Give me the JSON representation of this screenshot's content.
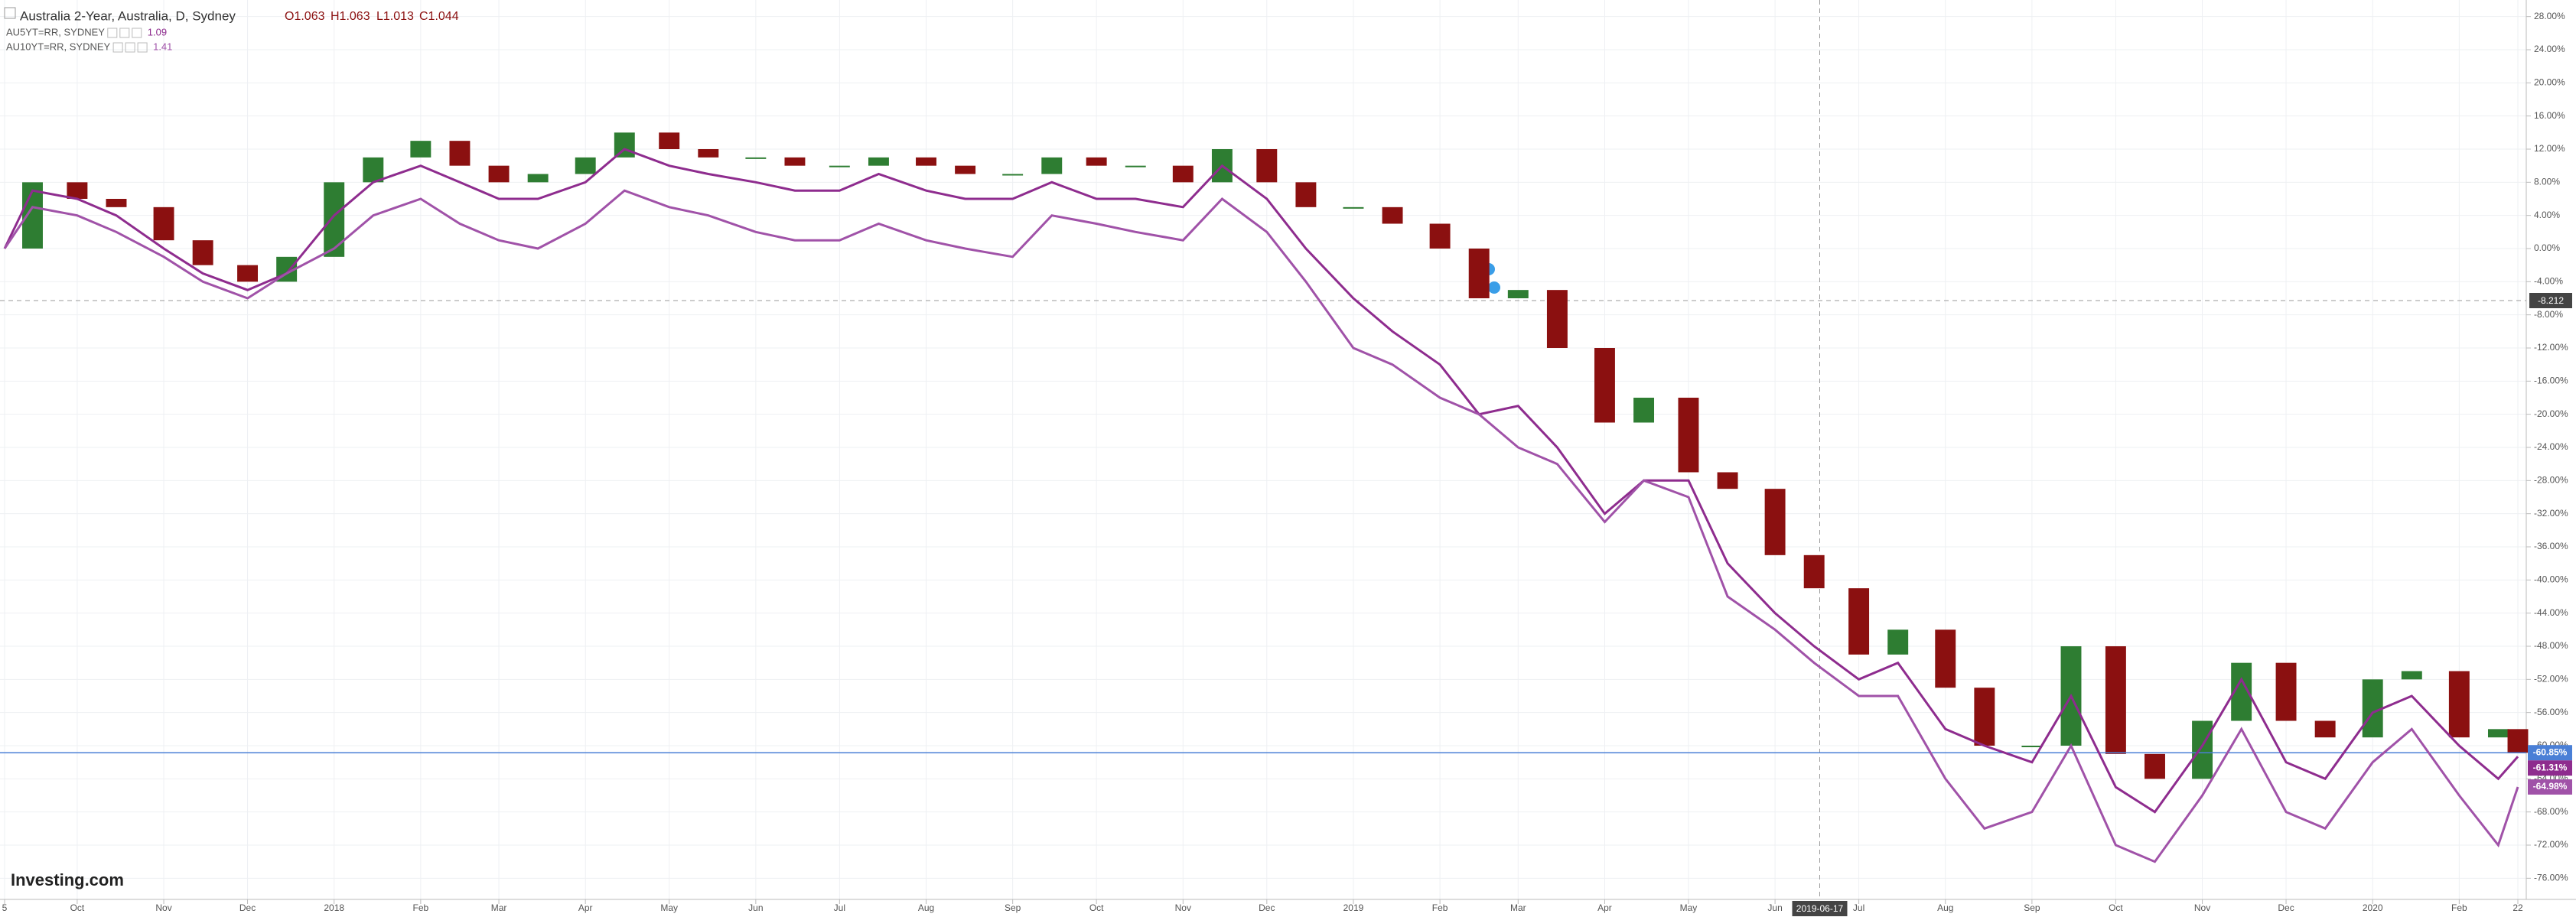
{
  "chart_data": {
    "type": "candlestick-lines",
    "title": "Australia 2-Year, Australia, D, Sydney",
    "ohlc_labels": [
      "O1.063",
      "H1.063",
      "L1.013",
      "C1.044"
    ],
    "x": [
      "2017-09-05",
      "2017-09-15",
      "2017-10-01",
      "2017-10-15",
      "2017-11-01",
      "2017-11-15",
      "2017-12-01",
      "2017-12-15",
      "2018-01-01",
      "2018-01-15",
      "2018-02-01",
      "2018-02-15",
      "2018-03-01",
      "2018-03-15",
      "2018-04-01",
      "2018-04-15",
      "2018-05-01",
      "2018-05-15",
      "2018-06-01",
      "2018-06-15",
      "2018-07-01",
      "2018-07-15",
      "2018-08-01",
      "2018-08-15",
      "2018-09-01",
      "2018-09-15",
      "2018-10-01",
      "2018-10-15",
      "2018-11-01",
      "2018-11-15",
      "2018-12-01",
      "2018-12-15",
      "2019-01-01",
      "2019-01-15",
      "2019-02-01",
      "2019-02-15",
      "2019-03-01",
      "2019-03-15",
      "2019-04-01",
      "2019-04-15",
      "2019-05-01",
      "2019-05-15",
      "2019-06-01",
      "2019-06-15",
      "2019-07-01",
      "2019-07-15",
      "2019-08-01",
      "2019-08-15",
      "2019-09-01",
      "2019-09-15",
      "2019-10-01",
      "2019-10-15",
      "2019-11-01",
      "2019-11-15",
      "2019-12-01",
      "2019-12-15",
      "2020-01-01",
      "2020-01-15",
      "2020-02-01",
      "2020-02-15",
      "2020-02-22"
    ],
    "xlim": [
      "2017-09-05",
      "2020-02-22"
    ],
    "xticks": [
      {
        "value": "2017-09-05",
        "label": "5"
      },
      {
        "value": "2017-10-01",
        "label": "Oct"
      },
      {
        "value": "2017-11-01",
        "label": "Nov"
      },
      {
        "value": "2017-12-01",
        "label": "Dec"
      },
      {
        "value": "2018-01-01",
        "label": "2018"
      },
      {
        "value": "2018-02-01",
        "label": "Feb"
      },
      {
        "value": "2018-03-01",
        "label": "Mar"
      },
      {
        "value": "2018-04-01",
        "label": "Apr"
      },
      {
        "value": "2018-05-01",
        "label": "May"
      },
      {
        "value": "2018-06-01",
        "label": "Jun"
      },
      {
        "value": "2018-07-01",
        "label": "Jul"
      },
      {
        "value": "2018-08-01",
        "label": "Aug"
      },
      {
        "value": "2018-09-01",
        "label": "Sep"
      },
      {
        "value": "2018-10-01",
        "label": "Oct"
      },
      {
        "value": "2018-11-01",
        "label": "Nov"
      },
      {
        "value": "2018-12-01",
        "label": "Dec"
      },
      {
        "value": "2019-01-01",
        "label": "2019"
      },
      {
        "value": "2019-02-01",
        "label": "Feb"
      },
      {
        "value": "2019-03-01",
        "label": "Mar"
      },
      {
        "value": "2019-04-01",
        "label": "Apr"
      },
      {
        "value": "2019-05-01",
        "label": "May"
      },
      {
        "value": "2019-06-01",
        "label": "Jun"
      },
      {
        "value": "2019-07-01",
        "label": "Jul"
      },
      {
        "value": "2019-08-01",
        "label": "Aug"
      },
      {
        "value": "2019-09-01",
        "label": "Sep"
      },
      {
        "value": "2019-10-01",
        "label": "Oct"
      },
      {
        "value": "2019-11-01",
        "label": "Nov"
      },
      {
        "value": "2019-12-01",
        "label": "Dec"
      },
      {
        "value": "2020-01-01",
        "label": "2020"
      },
      {
        "value": "2020-02-01",
        "label": "Feb"
      },
      {
        "value": "2020-02-22",
        "label": "22"
      }
    ],
    "ylim": [
      -78,
      30
    ],
    "yticks": [
      {
        "value": 28,
        "label": "28.00%"
      },
      {
        "value": 24,
        "label": "24.00%"
      },
      {
        "value": 20,
        "label": "20.00%"
      },
      {
        "value": 16,
        "label": "16.00%"
      },
      {
        "value": 12,
        "label": "12.00%"
      },
      {
        "value": 8,
        "label": "8.00%"
      },
      {
        "value": 4,
        "label": "4.00%"
      },
      {
        "value": 0,
        "label": "0.00%"
      },
      {
        "value": -4,
        "label": "-4.00%"
      },
      {
        "value": -8,
        "label": "-8.00%"
      },
      {
        "value": -12,
        "label": "-12.00%"
      },
      {
        "value": -16,
        "label": "-16.00%"
      },
      {
        "value": -20,
        "label": "-20.00%"
      },
      {
        "value": -24,
        "label": "-24.00%"
      },
      {
        "value": -28,
        "label": "-28.00%"
      },
      {
        "value": -32,
        "label": "-32.00%"
      },
      {
        "value": -36,
        "label": "-36.00%"
      },
      {
        "value": -40,
        "label": "-40.00%"
      },
      {
        "value": -44,
        "label": "-44.00%"
      },
      {
        "value": -48,
        "label": "-48.00%"
      },
      {
        "value": -52,
        "label": "-52.00%"
      },
      {
        "value": -56,
        "label": "-56.00%"
      },
      {
        "value": -60,
        "label": "-60.00%"
      },
      {
        "value": -64,
        "label": "-64.00%"
      },
      {
        "value": -68,
        "label": "-68.00%"
      },
      {
        "value": -72,
        "label": "-72.00%"
      },
      {
        "value": -76,
        "label": "-76.00%"
      }
    ],
    "grid": true,
    "crosshair": {
      "x": "2019-06-17",
      "y_label": "-8.212"
    },
    "watermark": "Investing.com",
    "up_color": "#2e7d32",
    "down_color": "#8b1010",
    "series": [
      {
        "kind": "candles",
        "color": "#4a7fd6",
        "last_label": "-60.85%",
        "values": [
          0,
          8,
          6,
          5,
          1,
          -2,
          -4,
          -1,
          8,
          11,
          13,
          10,
          8,
          9,
          11,
          14,
          12,
          11,
          11,
          10,
          10,
          11,
          10,
          9,
          9,
          11,
          10,
          10,
          8,
          12,
          8,
          5,
          5,
          3,
          0,
          -6,
          -5,
          -12,
          -21,
          -18,
          -27,
          -29,
          -37,
          -41,
          -49,
          -46,
          -53,
          -60,
          -60,
          -48,
          -61,
          -64,
          -57,
          -50,
          -57,
          -59,
          -52,
          -51,
          -59,
          -58,
          -60.85
        ]
      },
      {
        "kind": "line",
        "name": "AU5YT=RR, SYDNEY",
        "legend_value": "1.09",
        "color": "#8e2c8e",
        "last_label": "-61.31%",
        "values": [
          0,
          7,
          6,
          4,
          0,
          -3,
          -5,
          -3,
          4,
          8,
          10,
          8,
          6,
          6,
          8,
          12,
          10,
          9,
          8,
          7,
          7,
          9,
          7,
          6,
          6,
          8,
          6,
          6,
          5,
          10,
          6,
          0,
          -6,
          -10,
          -14,
          -20,
          -19,
          -24,
          -32,
          -28,
          -28,
          -38,
          -44,
          -48,
          -52,
          -50,
          -58,
          -60,
          -62,
          -54,
          -65,
          -68,
          -60,
          -52,
          -62,
          -64,
          -56,
          -54,
          -60,
          -64,
          -61.31
        ]
      },
      {
        "kind": "line",
        "name": "AU10YT=RR, SYDNEY",
        "legend_value": "1.41",
        "color": "#a052a8",
        "last_label": "-64.98%",
        "values": [
          0,
          5,
          4,
          2,
          -1,
          -4,
          -6,
          -3,
          0,
          4,
          6,
          3,
          1,
          0,
          3,
          7,
          5,
          4,
          2,
          1,
          1,
          3,
          1,
          0,
          -1,
          4,
          3,
          2,
          1,
          6,
          2,
          -4,
          -12,
          -14,
          -18,
          -20,
          -24,
          -26,
          -33,
          -28,
          -30,
          -42,
          -46,
          -50,
          -54,
          -54,
          -64,
          -70,
          -68,
          -60,
          -72,
          -74,
          -66,
          -58,
          -68,
          -70,
          -62,
          -58,
          -66,
          -72,
          -64.98
        ]
      }
    ]
  }
}
